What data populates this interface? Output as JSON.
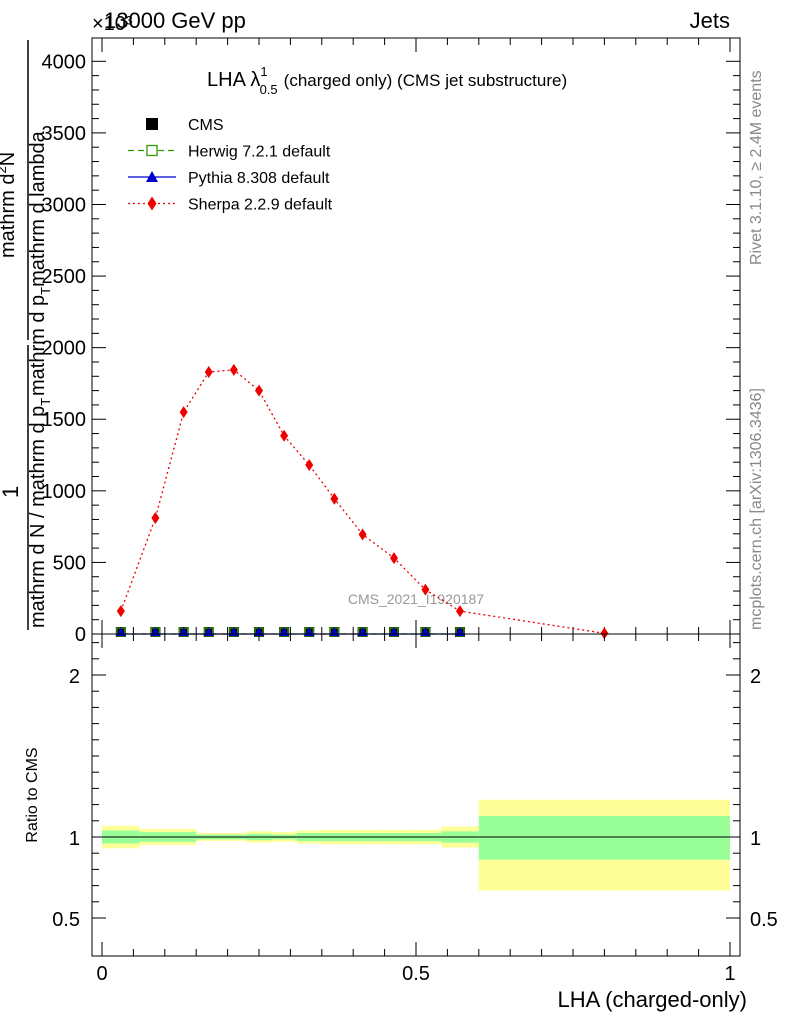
{
  "header": {
    "left": "13000 GeV pp",
    "right": "Jets",
    "exponent": "×10³"
  },
  "side_labels": {
    "rivet": "Rivet 3.1.10, ≥ 2.4M events",
    "mcplots": "mcplots.cern.ch [arXiv:1306.3436]"
  },
  "watermark": "CMS_2021_I1920187",
  "chart_data": [
    {
      "type": "scatter",
      "title_main": "LHA λ",
      "title_sup": "1",
      "title_sub": "0.5",
      "title_rest": "(charged only) (CMS jet substructure)",
      "ylabel": "1 / mathrm d N / mathrm d p_T mathrm d p_T mathrm d lambda · mathrm d N / mathrm d p_T mathrm d lambda",
      "ylabel_parts": {
        "one": "1",
        "den_outer": "mathrm d N / mathrm d p",
        "den_outer_sub": "T",
        "num": "mathrm d",
        "num_sup": "2",
        "num_rest": "N",
        "den": "mathrm d p",
        "den_sub": "T",
        "den_rest": "mathrm d lambda"
      },
      "ylim": [
        0,
        4200
      ],
      "yticks": [
        {
          "v": 0,
          "label": "0"
        },
        {
          "v": 500,
          "label": "500"
        },
        {
          "v": 1000,
          "label": "1000"
        },
        {
          "v": 1500,
          "label": "1500"
        },
        {
          "v": 2000,
          "label": "2000"
        },
        {
          "v": 2500,
          "label": "2500"
        },
        {
          "v": 3000,
          "label": "3000"
        },
        {
          "v": 3500,
          "label": "3500"
        },
        {
          "v": 4000,
          "label": "4000"
        }
      ],
      "legend_position": "top-left",
      "series": [
        {
          "name": "CMS",
          "color": "#000000",
          "marker": "square",
          "x": [
            0.03,
            0.085,
            0.13,
            0.17,
            0.21,
            0.25,
            0.29,
            0.33,
            0.37,
            0.415,
            0.465,
            0.515,
            0.57
          ],
          "y": [
            0,
            0,
            0,
            0,
            0,
            0,
            0,
            0,
            0,
            0,
            0,
            0,
            0
          ]
        },
        {
          "name": "Herwig 7.2.1 default",
          "color": "#339900",
          "marker": "open-square",
          "line": "dashed",
          "x": [
            0.03,
            0.085,
            0.13,
            0.17,
            0.21,
            0.25,
            0.29,
            0.33,
            0.37,
            0.415,
            0.465,
            0.515,
            0.57
          ],
          "y": [
            0,
            0,
            0,
            0,
            0,
            0,
            0,
            0,
            0,
            0,
            0,
            0,
            0
          ]
        },
        {
          "name": "Pythia 8.308 default",
          "color": "#0000cc",
          "marker": "triangle",
          "line": "solid",
          "x": [
            0.03,
            0.085,
            0.13,
            0.17,
            0.21,
            0.25,
            0.29,
            0.33,
            0.37,
            0.415,
            0.465,
            0.515,
            0.57
          ],
          "y": [
            0,
            0,
            0,
            0,
            0,
            0,
            0,
            0,
            0,
            0,
            0,
            0,
            0
          ]
        },
        {
          "name": "Sherpa 2.2.9 default",
          "color": "#ee0000",
          "marker": "diamond",
          "line": "dotted",
          "x": [
            0.03,
            0.085,
            0.13,
            0.17,
            0.21,
            0.25,
            0.29,
            0.33,
            0.37,
            0.415,
            0.465,
            0.515,
            0.57,
            0.8
          ],
          "y": [
            160,
            810,
            1550,
            1830,
            1845,
            1700,
            1385,
            1180,
            945,
            695,
            530,
            310,
            160,
            5
          ]
        }
      ]
    },
    {
      "type": "area",
      "ylabel": "Ratio to CMS",
      "xlabel": "LHA (charged-only)",
      "ylim": [
        0.5,
        2.3
      ],
      "xlim": [
        0,
        1
      ],
      "xticks": [
        {
          "v": 0,
          "label": "0"
        },
        {
          "v": 0.5,
          "label": "0.5"
        },
        {
          "v": 1,
          "label": "1"
        }
      ],
      "yticks": [
        {
          "v": 0.5,
          "label": "0.5"
        },
        {
          "v": 1,
          "label": "1"
        },
        {
          "v": 2,
          "label": "2"
        }
      ],
      "bands": [
        {
          "x0": 0.0,
          "x1": 0.06,
          "g_lo": 0.96,
          "g_hi": 1.04,
          "y_lo": 0.93,
          "y_hi": 1.07
        },
        {
          "x0": 0.06,
          "x1": 0.15,
          "g_lo": 0.97,
          "g_hi": 1.03,
          "y_lo": 0.95,
          "y_hi": 1.05
        },
        {
          "x0": 0.15,
          "x1": 0.23,
          "g_lo": 0.985,
          "g_hi": 1.015,
          "y_lo": 0.975,
          "y_hi": 1.025
        },
        {
          "x0": 0.23,
          "x1": 0.27,
          "g_lo": 0.98,
          "g_hi": 1.02,
          "y_lo": 0.965,
          "y_hi": 1.035
        },
        {
          "x0": 0.27,
          "x1": 0.31,
          "g_lo": 0.985,
          "g_hi": 1.015,
          "y_lo": 0.97,
          "y_hi": 1.03
        },
        {
          "x0": 0.31,
          "x1": 0.35,
          "g_lo": 0.975,
          "g_hi": 1.025,
          "y_lo": 0.96,
          "y_hi": 1.04
        },
        {
          "x0": 0.35,
          "x1": 0.44,
          "g_lo": 0.975,
          "g_hi": 1.025,
          "y_lo": 0.955,
          "y_hi": 1.045
        },
        {
          "x0": 0.44,
          "x1": 0.49,
          "g_lo": 0.975,
          "g_hi": 1.025,
          "y_lo": 0.955,
          "y_hi": 1.045
        },
        {
          "x0": 0.49,
          "x1": 0.54,
          "g_lo": 0.975,
          "g_hi": 1.025,
          "y_lo": 0.955,
          "y_hi": 1.045
        },
        {
          "x0": 0.54,
          "x1": 0.6,
          "g_lo": 0.965,
          "g_hi": 1.035,
          "y_lo": 0.935,
          "y_hi": 1.065
        },
        {
          "x0": 0.6,
          "x1": 1.0,
          "g_lo": 0.86,
          "g_hi": 1.13,
          "y_lo": 0.67,
          "y_hi": 1.23
        }
      ],
      "band_colors": {
        "inner": "#99ff99",
        "outer": "#ffff99"
      },
      "reference_line": 1
    }
  ]
}
